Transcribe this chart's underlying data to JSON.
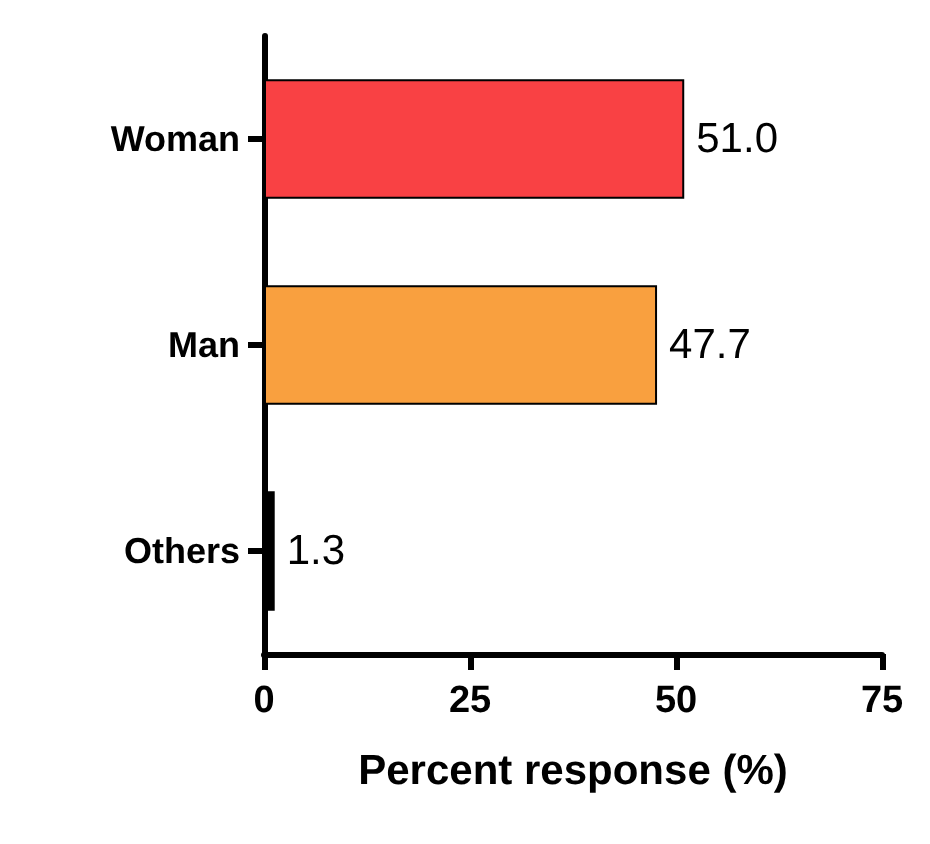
{
  "chart_data": {
    "type": "bar",
    "orientation": "horizontal",
    "xlabel": "Percent response (%)",
    "categories": [
      "Woman",
      "Man",
      "Others"
    ],
    "values": [
      51.0,
      47.7,
      1.3
    ],
    "value_labels": [
      "51.0",
      "47.7",
      "1.3"
    ],
    "colors": [
      "#f94144",
      "#f9a03f",
      "#000000"
    ],
    "xlim": [
      0,
      75
    ],
    "xticks": [
      0,
      25,
      50,
      75
    ],
    "grid": false
  }
}
